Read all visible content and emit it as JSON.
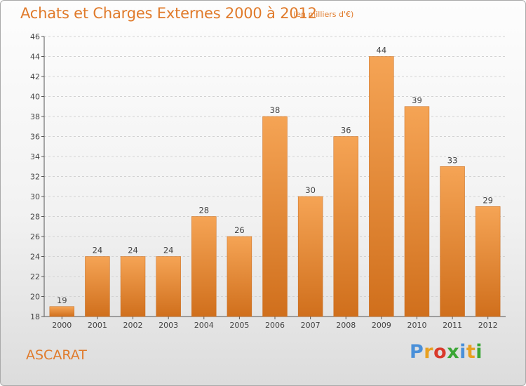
{
  "header": {
    "title": "Achats et Charges Externes 2000 à 2012",
    "subtitle": "(en milliers d'€)"
  },
  "footer": {
    "commune": "ASCARAT",
    "brand": "Proxiti",
    "brand_colors": [
      "#4a90d9",
      "#e8a020",
      "#d93a2b",
      "#3aa635",
      "#4a90d9",
      "#e8a020",
      "#3aa635"
    ]
  },
  "colors": {
    "accent": "#e07a2a",
    "bar_light": "#f5a455",
    "bar_dark": "#d06f1c"
  },
  "chart_data": {
    "type": "bar",
    "title": "Achats et Charges Externes 2000 à 2012",
    "subtitle": "(en milliers d'€)",
    "xlabel": "",
    "ylabel": "",
    "categories": [
      "2000",
      "2001",
      "2002",
      "2003",
      "2004",
      "2005",
      "2006",
      "2007",
      "2008",
      "2009",
      "2010",
      "2011",
      "2012"
    ],
    "values": [
      19,
      24,
      24,
      24,
      28,
      26,
      38,
      30,
      36,
      44,
      39,
      33,
      29
    ],
    "ylim": [
      18,
      46
    ],
    "yticks": [
      18,
      20,
      22,
      24,
      26,
      28,
      30,
      32,
      34,
      36,
      38,
      40,
      42,
      44,
      46
    ],
    "grid": true,
    "legend": "none"
  }
}
